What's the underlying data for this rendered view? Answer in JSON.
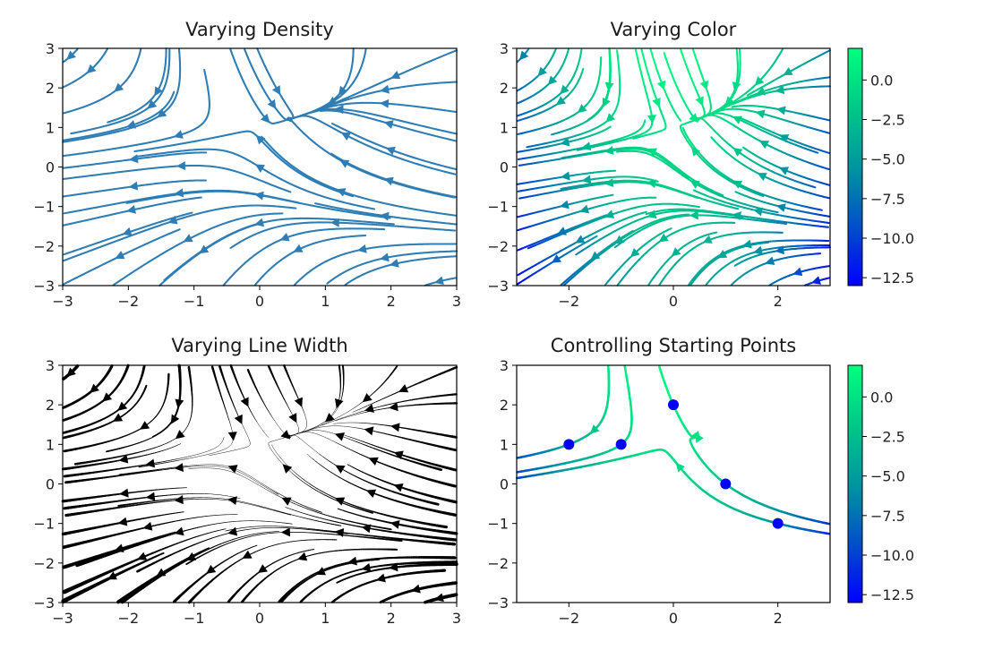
{
  "colors": {
    "density_line": "#2e7eb5",
    "linewidth_line": "#000000",
    "start_point": "#0000ff",
    "cmap": [
      "#0000ff",
      "#0050c8",
      "#0096a0",
      "#00c888",
      "#00ff80"
    ]
  },
  "chart_data": [
    {
      "type": "streamplot",
      "title": "Varying Density",
      "xlim": [
        -3,
        3
      ],
      "ylim": [
        -3,
        3
      ],
      "xticks": [
        -3,
        -2,
        -1,
        0,
        1,
        2,
        3
      ],
      "yticks": [
        -3,
        -2,
        -1,
        0,
        1,
        2,
        3
      ],
      "field": {
        "U": "-1 - x^2 + y",
        "V": "1 + x - y^2"
      },
      "density": [
        0.5,
        1
      ],
      "color": "single"
    },
    {
      "type": "streamplot",
      "title": "Varying Color",
      "xlim": [
        -3,
        3
      ],
      "ylim": [
        -3,
        3
      ],
      "xticks": [
        -2,
        0,
        2
      ],
      "yticks": [
        -3,
        -2,
        -1,
        0,
        1,
        2,
        3
      ],
      "field": {
        "U": "-1 - x^2 + y",
        "V": "1 + x - y^2"
      },
      "color": "U",
      "cmap": "winter",
      "colorbar": {
        "ticks": [
          0.0,
          -2.5,
          -5.0,
          -7.5,
          -10.0,
          -12.5
        ],
        "range": [
          -13,
          2
        ]
      }
    },
    {
      "type": "streamplot",
      "title": "Varying Line Width",
      "xlim": [
        -3,
        3
      ],
      "ylim": [
        -3,
        3
      ],
      "xticks": [
        -3,
        -2,
        -1,
        0,
        1,
        2,
        3
      ],
      "yticks": [
        -3,
        -2,
        -1,
        0,
        1,
        2,
        3
      ],
      "field": {
        "U": "-1 - x^2 + y",
        "V": "1 + x - y^2"
      },
      "linewidth": "5 * speed / max(speed)",
      "color": "black"
    },
    {
      "type": "streamplot",
      "title": "Controlling Starting Points",
      "xlim": [
        -3,
        3
      ],
      "ylim": [
        -3,
        3
      ],
      "xticks": [
        -2,
        0,
        2
      ],
      "yticks": [
        -3,
        -2,
        -1,
        0,
        1,
        2,
        3
      ],
      "field": {
        "U": "-1 - x^2 + y",
        "V": "1 + x - y^2"
      },
      "color": "U",
      "cmap": "winter",
      "start_points": [
        [
          -2,
          1
        ],
        [
          -1,
          1
        ],
        [
          0,
          2
        ],
        [
          1,
          0
        ],
        [
          2,
          -1
        ]
      ],
      "colorbar": {
        "ticks": [
          0.0,
          -2.5,
          -5.0,
          -7.5,
          -10.0,
          -12.5
        ],
        "range": [
          -13,
          2
        ]
      }
    }
  ]
}
